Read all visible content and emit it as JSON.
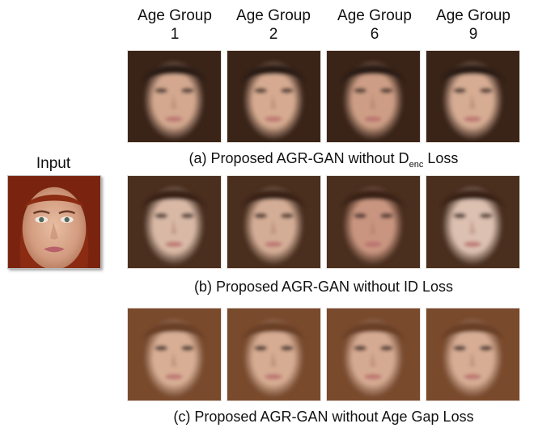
{
  "header": {
    "columns": [
      {
        "line1": "Age Group",
        "line2": "1"
      },
      {
        "line1": "Age Group",
        "line2": "2"
      },
      {
        "line1": "Age Group",
        "line2": "6"
      },
      {
        "line1": "Age Group",
        "line2": "9"
      }
    ]
  },
  "input": {
    "label": "Input"
  },
  "rows": [
    {
      "caption_pre": "(a) Proposed AGR-GAN without D",
      "caption_sub": "enc",
      "caption_post": " Loss",
      "skin": [
        "#d3a88f",
        "#d5aa90",
        "#cd9e85",
        "#d6ac93"
      ],
      "hair": "#2b1a12",
      "bg": "#3a2418"
    },
    {
      "caption": "(b) Proposed AGR-GAN without ID Loss",
      "skin": [
        "#d9b9a6",
        "#d4ad96",
        "#c99580",
        "#dcc0b0"
      ],
      "hair": "#3b2416",
      "bg": "#4a2e1e"
    },
    {
      "caption": "(c) Proposed AGR-GAN without Age Gap Loss",
      "skin": [
        "#d8af95",
        "#d6ac92",
        "#d5aa92",
        "#d7ad94"
      ],
      "hair": "#6a4026",
      "bg": "#7a4a2c"
    }
  ],
  "colors": {
    "input_hair": "#8a2b12",
    "input_skin": "#dcab90"
  }
}
